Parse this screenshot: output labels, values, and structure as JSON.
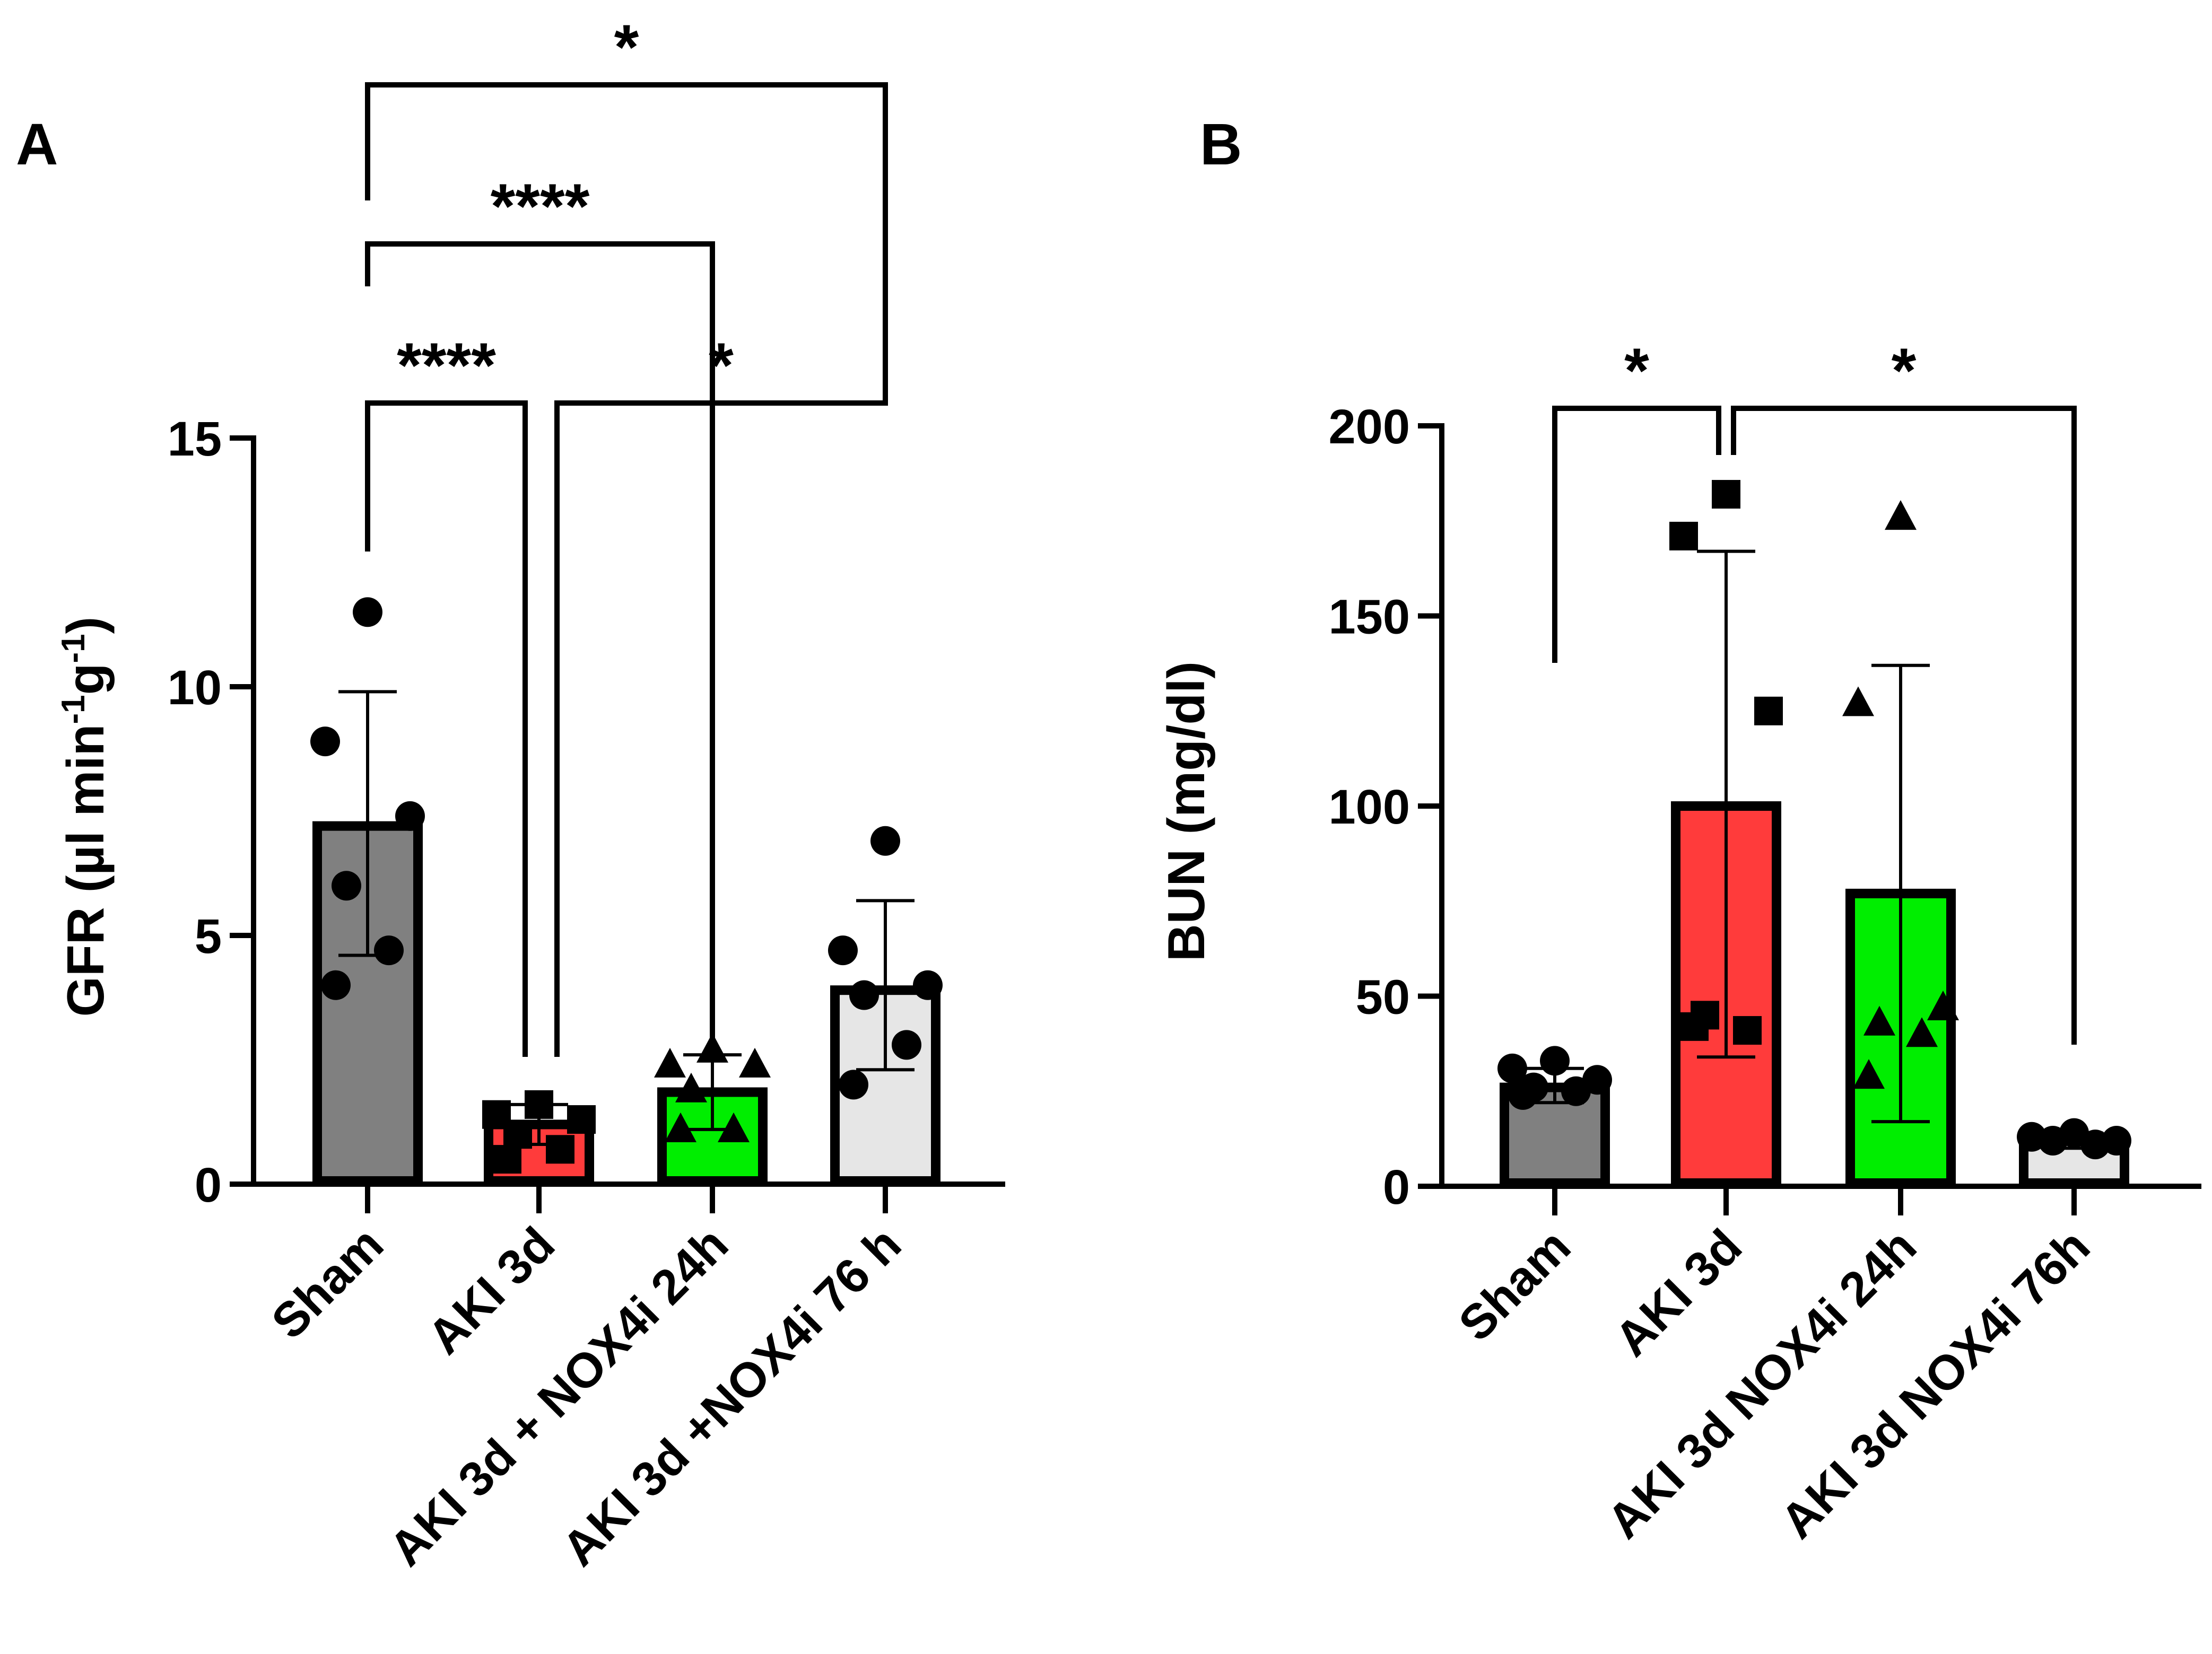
{
  "chart_data": [
    {
      "type": "bar",
      "panel_label": "A",
      "title": "",
      "xlabel": "",
      "ylabel": "GFR (µl min-1g-1)",
      "ylabel_parts": {
        "base": "GFR (µl min",
        "sup1": "-1",
        "mid": "g",
        "sup2": "-1",
        "end": ")"
      },
      "ylim": [
        0,
        15
      ],
      "yticks": [
        0,
        5,
        10,
        15
      ],
      "ytick_labels": [
        "0",
        "5",
        "10",
        "15"
      ],
      "categories": [
        "Sham",
        "AKI 3d",
        "AKI 3d + NOX4i 24h",
        "AKI 3d +NOX4i 76 h"
      ],
      "values": [
        7.2,
        1.2,
        1.85,
        3.9
      ],
      "errors_plus": [
        9.9,
        1.6,
        2.6,
        5.7
      ],
      "errors_minus": [
        4.6,
        0.8,
        1.1,
        2.3
      ],
      "colors": [
        "#808080",
        "#ff3b3b",
        "#00ee00",
        "#e6e6e6"
      ],
      "markers": [
        "circle",
        "square",
        "triangle",
        "circle"
      ],
      "points": [
        [
          11.5,
          8.9,
          7.4,
          6.0,
          4.7,
          4.0
        ],
        [
          1.6,
          1.4,
          1.3,
          1.0,
          0.7,
          0.5
        ],
        [
          2.7,
          2.4,
          2.4,
          1.9,
          1.1,
          1.1
        ],
        [
          6.9,
          4.7,
          4.0,
          3.8,
          2.8,
          2.0
        ]
      ],
      "significance": [
        {
          "from": 0,
          "to": 3,
          "label": "*"
        },
        {
          "from": 0,
          "to": 2,
          "label": "****"
        },
        {
          "from": 0,
          "to": 1,
          "label": "****"
        },
        {
          "from": 1,
          "to": 3,
          "label": "*"
        }
      ]
    },
    {
      "type": "bar",
      "panel_label": "B",
      "title": "",
      "xlabel": "",
      "ylabel": "BUN (mg/dl)",
      "ylim": [
        0,
        200
      ],
      "yticks": [
        0,
        50,
        100,
        150,
        200
      ],
      "ytick_labels": [
        "0",
        "50",
        "100",
        "150",
        "200"
      ],
      "categories": [
        "Sham",
        "AKI 3d",
        "AKI 3d NOX4i 24h",
        "AKI 3d NOX4i 76h"
      ],
      "values": [
        26,
        100,
        77,
        12
      ],
      "errors_plus": [
        31,
        167,
        137,
        14
      ],
      "errors_minus": [
        22,
        34,
        17,
        10
      ],
      "colors": [
        "#808080",
        "#ff3b3b",
        "#00ee00",
        "#e6e6e6"
      ],
      "markers": [
        "circle",
        "square",
        "triangle",
        "circle"
      ],
      "points": [
        [
          33,
          31,
          28,
          26,
          25,
          24
        ],
        [
          182,
          171,
          125,
          45,
          41,
          42
        ],
        [
          176,
          127,
          47,
          43,
          40,
          29
        ],
        [
          14,
          13,
          12,
          12,
          11
        ]
      ],
      "significance": [
        {
          "from": 0,
          "to": 1,
          "label": "*"
        },
        {
          "from": 1,
          "to": 3,
          "label": "*"
        }
      ]
    }
  ]
}
